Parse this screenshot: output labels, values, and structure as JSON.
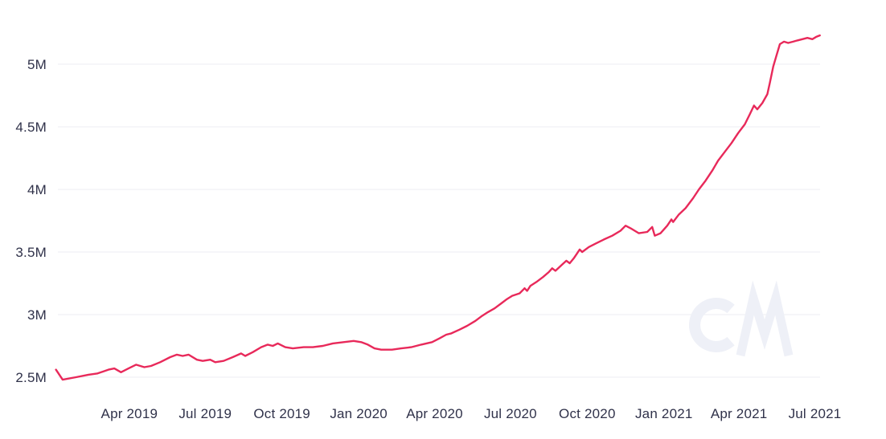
{
  "page": {
    "background": "#ffffff"
  },
  "watermark": {
    "label": "CM"
  },
  "colors": {
    "line": "#e8295a",
    "grid": "#f0f1f5",
    "axis_text": "#30324a",
    "watermark": "#eef0f7",
    "background": "#ffffff"
  },
  "chart_data": {
    "type": "line",
    "title": "",
    "legend": "none",
    "grid": "horizontal-only",
    "xlim": [
      "2019-01-03",
      "2021-07-07"
    ],
    "ylim": [
      2.45,
      5.5
    ],
    "y_axis": {
      "ticks": [
        {
          "label": "2.5M",
          "value": 2.5
        },
        {
          "label": "3M",
          "value": 3.0
        },
        {
          "label": "3.5M",
          "value": 3.5
        },
        {
          "label": "4M",
          "value": 4.0
        },
        {
          "label": "4.5M",
          "value": 4.5
        },
        {
          "label": "5M",
          "value": 5.0
        }
      ]
    },
    "x_axis": {
      "ticks": [
        {
          "label": "Apr 2019",
          "date": "2019-04-01"
        },
        {
          "label": "Jul 2019",
          "date": "2019-07-01"
        },
        {
          "label": "Oct 2019",
          "date": "2019-10-01"
        },
        {
          "label": "Jan 2020",
          "date": "2020-01-01"
        },
        {
          "label": "Apr 2020",
          "date": "2020-04-01"
        },
        {
          "label": "Jul 2020",
          "date": "2020-07-01"
        },
        {
          "label": "Oct 2020",
          "date": "2020-10-01"
        },
        {
          "label": "Jan 2021",
          "date": "2021-01-01"
        },
        {
          "label": "Apr 2021",
          "date": "2021-04-01"
        },
        {
          "label": "Jul 2021",
          "date": "2021-07-01"
        }
      ]
    },
    "series": [
      {
        "name": "value",
        "color": "#e8295a",
        "points": [
          [
            "2019-01-03",
            2.56
          ],
          [
            "2019-01-11",
            2.48
          ],
          [
            "2019-01-27",
            2.5
          ],
          [
            "2019-02-11",
            2.52
          ],
          [
            "2019-02-22",
            2.53
          ],
          [
            "2019-03-07",
            2.56
          ],
          [
            "2019-03-14",
            2.57
          ],
          [
            "2019-03-22",
            2.54
          ],
          [
            "2019-03-31",
            2.57
          ],
          [
            "2019-04-09",
            2.6
          ],
          [
            "2019-04-19",
            2.58
          ],
          [
            "2019-04-27",
            2.59
          ],
          [
            "2019-05-08",
            2.62
          ],
          [
            "2019-05-20",
            2.66
          ],
          [
            "2019-05-28",
            2.68
          ],
          [
            "2019-06-04",
            2.67
          ],
          [
            "2019-06-11",
            2.68
          ],
          [
            "2019-06-21",
            2.64
          ],
          [
            "2019-06-28",
            2.63
          ],
          [
            "2019-07-07",
            2.64
          ],
          [
            "2019-07-13",
            2.62
          ],
          [
            "2019-07-23",
            2.63
          ],
          [
            "2019-08-03",
            2.66
          ],
          [
            "2019-08-13",
            2.69
          ],
          [
            "2019-08-18",
            2.67
          ],
          [
            "2019-08-27",
            2.7
          ],
          [
            "2019-09-06",
            2.74
          ],
          [
            "2019-09-14",
            2.76
          ],
          [
            "2019-09-20",
            2.75
          ],
          [
            "2019-09-26",
            2.77
          ],
          [
            "2019-10-05",
            2.74
          ],
          [
            "2019-10-14",
            2.73
          ],
          [
            "2019-10-27",
            2.74
          ],
          [
            "2019-11-07",
            2.74
          ],
          [
            "2019-11-19",
            2.75
          ],
          [
            "2019-12-01",
            2.77
          ],
          [
            "2019-12-14",
            2.78
          ],
          [
            "2019-12-26",
            2.79
          ],
          [
            "2020-01-04",
            2.78
          ],
          [
            "2020-01-12",
            2.76
          ],
          [
            "2020-01-20",
            2.73
          ],
          [
            "2020-01-28",
            2.72
          ],
          [
            "2020-02-10",
            2.72
          ],
          [
            "2020-02-21",
            2.73
          ],
          [
            "2020-03-04",
            2.74
          ],
          [
            "2020-03-16",
            2.76
          ],
          [
            "2020-03-29",
            2.78
          ],
          [
            "2020-04-07",
            2.81
          ],
          [
            "2020-04-15",
            2.84
          ],
          [
            "2020-04-21",
            2.85
          ],
          [
            "2020-05-01",
            2.88
          ],
          [
            "2020-05-10",
            2.91
          ],
          [
            "2020-05-20",
            2.95
          ],
          [
            "2020-05-28",
            2.99
          ],
          [
            "2020-06-04",
            3.02
          ],
          [
            "2020-06-12",
            3.05
          ],
          [
            "2020-06-20",
            3.09
          ],
          [
            "2020-06-26",
            3.12
          ],
          [
            "2020-07-03",
            3.15
          ],
          [
            "2020-07-12",
            3.17
          ],
          [
            "2020-07-18",
            3.21
          ],
          [
            "2020-07-21",
            3.19
          ],
          [
            "2020-07-25",
            3.23
          ],
          [
            "2020-08-01",
            3.26
          ],
          [
            "2020-08-09",
            3.3
          ],
          [
            "2020-08-16",
            3.34
          ],
          [
            "2020-08-20",
            3.37
          ],
          [
            "2020-08-24",
            3.35
          ],
          [
            "2020-09-01",
            3.4
          ],
          [
            "2020-09-06",
            3.43
          ],
          [
            "2020-09-10",
            3.41
          ],
          [
            "2020-09-15",
            3.45
          ],
          [
            "2020-09-19",
            3.49
          ],
          [
            "2020-09-22",
            3.52
          ],
          [
            "2020-09-25",
            3.5
          ],
          [
            "2020-10-03",
            3.54
          ],
          [
            "2020-10-12",
            3.57
          ],
          [
            "2020-10-21",
            3.6
          ],
          [
            "2020-10-31",
            3.63
          ],
          [
            "2020-11-10",
            3.67
          ],
          [
            "2020-11-16",
            3.71
          ],
          [
            "2020-11-22",
            3.69
          ],
          [
            "2020-12-02",
            3.65
          ],
          [
            "2020-12-12",
            3.66
          ],
          [
            "2020-12-18",
            3.7
          ],
          [
            "2020-12-21",
            3.63
          ],
          [
            "2020-12-28",
            3.65
          ],
          [
            "2021-01-05",
            3.71
          ],
          [
            "2021-01-10",
            3.76
          ],
          [
            "2021-01-12",
            3.74
          ],
          [
            "2021-01-19",
            3.8
          ],
          [
            "2021-01-27",
            3.85
          ],
          [
            "2021-02-05",
            3.93
          ],
          [
            "2021-02-12",
            4.0
          ],
          [
            "2021-02-20",
            4.07
          ],
          [
            "2021-02-28",
            4.15
          ],
          [
            "2021-03-07",
            4.23
          ],
          [
            "2021-03-15",
            4.3
          ],
          [
            "2021-03-23",
            4.37
          ],
          [
            "2021-03-31",
            4.45
          ],
          [
            "2021-04-08",
            4.52
          ],
          [
            "2021-04-14",
            4.6
          ],
          [
            "2021-04-19",
            4.67
          ],
          [
            "2021-04-23",
            4.64
          ],
          [
            "2021-04-29",
            4.69
          ],
          [
            "2021-05-05",
            4.76
          ],
          [
            "2021-05-08",
            4.85
          ],
          [
            "2021-05-12",
            4.98
          ],
          [
            "2021-05-16",
            5.07
          ],
          [
            "2021-05-20",
            5.16
          ],
          [
            "2021-05-25",
            5.18
          ],
          [
            "2021-05-30",
            5.17
          ],
          [
            "2021-06-05",
            5.18
          ],
          [
            "2021-06-10",
            5.19
          ],
          [
            "2021-06-16",
            5.2
          ],
          [
            "2021-06-22",
            5.21
          ],
          [
            "2021-06-28",
            5.2
          ],
          [
            "2021-07-03",
            5.22
          ],
          [
            "2021-07-07",
            5.23
          ]
        ]
      }
    ]
  }
}
